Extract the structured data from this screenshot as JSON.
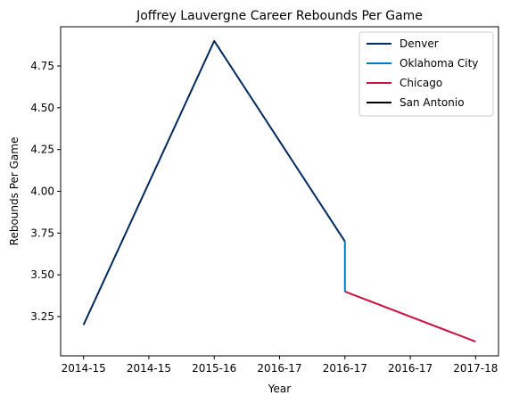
{
  "chart_data": {
    "type": "line",
    "title": "Joffrey Lauvergne Career Rebounds Per Game",
    "xlabel": "Year",
    "ylabel": "Rebounds Per Game",
    "x_tick_labels": [
      "2014-15",
      "2014-15",
      "2015-16",
      "2016-17",
      "2016-17",
      "2016-17",
      "2017-18"
    ],
    "x_ticks": [
      0,
      0.5,
      1,
      1.5,
      2,
      2.5,
      3
    ],
    "xlim": [
      -0.175,
      3.175
    ],
    "ylim": [
      3.015,
      4.985
    ],
    "y_ticks": [
      3.25,
      3.5,
      3.75,
      4.0,
      4.25,
      4.5,
      4.75
    ],
    "y_tick_labels": [
      "3.25",
      "3.50",
      "3.75",
      "4.00",
      "4.25",
      "4.50",
      "4.75"
    ],
    "grid": false,
    "legend_position": "top-right",
    "series": [
      {
        "name": "Denver",
        "color": "#012a5e",
        "x": [
          0,
          1,
          2
        ],
        "y": [
          3.2,
          4.9,
          3.7
        ]
      },
      {
        "name": "Oklahoma City",
        "color": "#007ac1",
        "x": [
          2,
          2
        ],
        "y": [
          3.7,
          3.4
        ]
      },
      {
        "name": "Chicago",
        "color": "#ce1141",
        "x": [
          2,
          3
        ],
        "y": [
          3.4,
          3.1
        ]
      },
      {
        "name": "San Antonio",
        "color": "#000000",
        "x": [],
        "y": []
      }
    ]
  }
}
